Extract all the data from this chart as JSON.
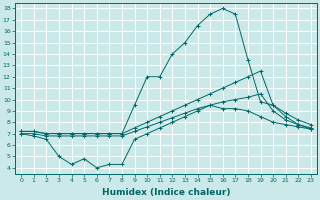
{
  "xlabel": "Humidex (Indice chaleur)",
  "xlim": [
    -0.5,
    23.5
  ],
  "ylim": [
    3.5,
    18.5
  ],
  "xticks": [
    0,
    1,
    2,
    3,
    4,
    5,
    6,
    7,
    8,
    9,
    10,
    11,
    12,
    13,
    14,
    15,
    16,
    17,
    18,
    19,
    20,
    21,
    22,
    23
  ],
  "yticks": [
    4,
    5,
    6,
    7,
    8,
    9,
    10,
    11,
    12,
    13,
    14,
    15,
    16,
    17,
    18
  ],
  "bg_color": "#cce9e9",
  "line_color": "#006666",
  "grid_color": "#ffffff",
  "min_line": [
    7.0,
    6.8,
    6.5,
    5.0,
    4.3,
    4.8,
    4.0,
    4.3,
    4.3,
    6.5,
    7.0,
    7.5,
    8.0,
    8.5,
    9.0,
    9.5,
    9.2,
    9.2,
    9.0,
    8.5,
    8.0,
    7.8,
    7.6,
    7.4
  ],
  "low_line": [
    7.0,
    7.0,
    6.8,
    6.8,
    6.8,
    6.8,
    6.8,
    6.8,
    6.8,
    7.2,
    7.6,
    8.0,
    8.4,
    8.8,
    9.2,
    9.5,
    9.8,
    10.0,
    10.2,
    10.5,
    9.0,
    8.2,
    7.8,
    7.5
  ],
  "high_line": [
    7.2,
    7.2,
    7.0,
    7.0,
    7.0,
    7.0,
    7.0,
    7.0,
    7.0,
    7.5,
    8.0,
    8.5,
    9.0,
    9.5,
    10.0,
    10.5,
    11.0,
    11.5,
    12.0,
    12.5,
    9.5,
    8.8,
    8.2,
    7.8
  ],
  "peak_line": [
    7.2,
    7.2,
    7.0,
    7.0,
    7.0,
    7.0,
    7.0,
    7.0,
    7.0,
    9.5,
    12.0,
    12.0,
    14.0,
    15.0,
    16.5,
    17.5,
    18.0,
    17.5,
    13.5,
    9.8,
    9.5,
    8.5,
    7.8,
    7.4
  ]
}
